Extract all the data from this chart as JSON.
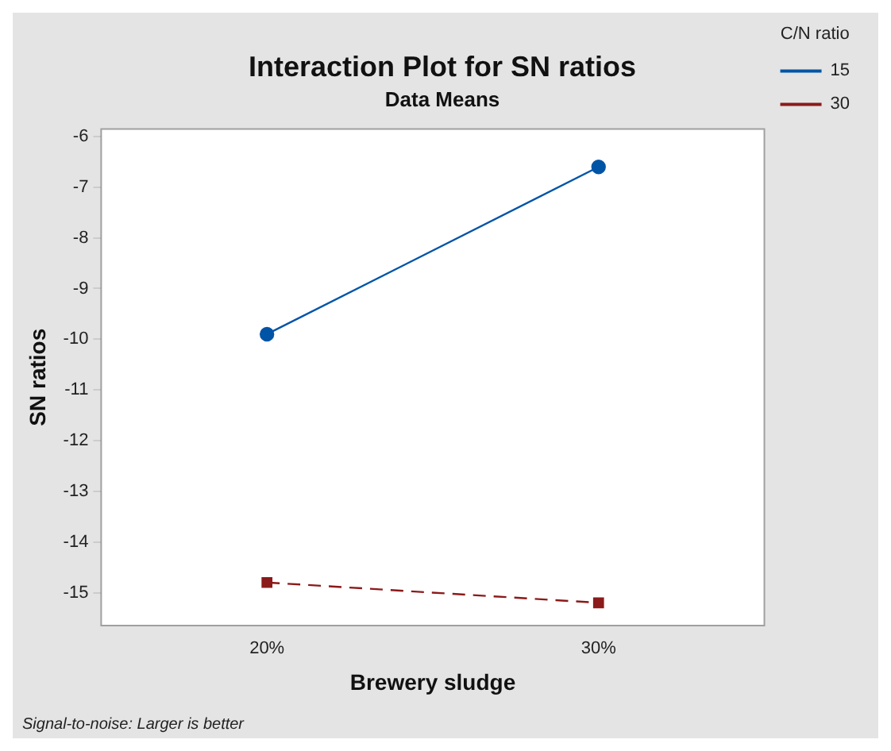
{
  "chart_data": {
    "type": "line",
    "title": "Interaction Plot for SN ratios",
    "subtitle": "Data Means",
    "xlabel": "Brewery sludge",
    "ylabel": "SN ratios",
    "legend_title": "C/N ratio",
    "legend": "right",
    "categories": [
      "20%",
      "30%"
    ],
    "series": [
      {
        "name": "15",
        "color": "#0054a6",
        "values": [
          -9.9,
          -6.6
        ],
        "marker": "circle",
        "line_style": "solid"
      },
      {
        "name": "30",
        "color": "#8b1a1a",
        "values": [
          -14.8,
          -15.2
        ],
        "marker": "square",
        "line_style": "dashed"
      }
    ],
    "ylim": [
      -15.65,
      -5.85
    ],
    "yticks": [
      -6,
      -7,
      -8,
      -9,
      -10,
      -11,
      -12,
      -13,
      -14,
      -15
    ],
    "grid": false,
    "annotations": [
      "Signal-to-noise: Larger is better"
    ]
  }
}
